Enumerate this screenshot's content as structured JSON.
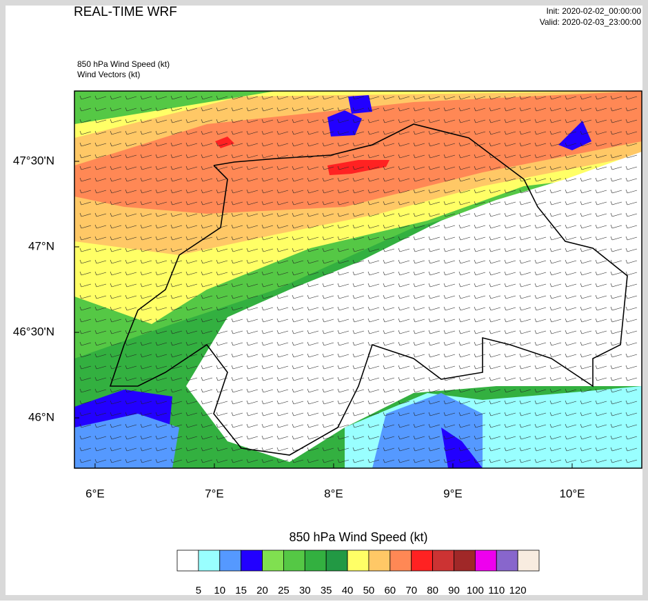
{
  "header": {
    "title": "REAL-TIME WRF",
    "init": "Init: 2020-02-02_00:00:00",
    "valid": "Valid: 2020-02-03_23:00:00"
  },
  "fields": [
    "850 hPa Wind Speed   (kt)",
    "Wind Vectors   (kt)"
  ],
  "map": {
    "lon_range": [
      5.827,
      10.584
    ],
    "lat_range": [
      45.706,
      47.911
    ],
    "lon_ticks": [
      {
        "value": 6,
        "label": "6°E"
      },
      {
        "value": 7,
        "label": "7°E"
      },
      {
        "value": 8,
        "label": "8°E"
      },
      {
        "value": 9,
        "label": "9°E"
      },
      {
        "value": 10,
        "label": "10°E"
      }
    ],
    "lat_ticks": [
      {
        "value": 46,
        "label": "46°N"
      },
      {
        "value": 46.5,
        "label": "46°30'N"
      },
      {
        "value": 47,
        "label": "47°N"
      },
      {
        "value": 47.5,
        "label": "47°30'N"
      }
    ]
  },
  "colorbar": {
    "title": "850 hPa Wind Speed  (kt)",
    "levels": [
      5,
      10,
      15,
      20,
      25,
      30,
      35,
      40,
      50,
      60,
      70,
      80,
      90,
      100,
      110,
      120
    ],
    "colors": [
      "#ffffff",
      "#99ffff",
      "#5599ff",
      "#2200ff",
      "#80e050",
      "#55c845",
      "#33b040",
      "#229944",
      "#ffff66",
      "#ffc866",
      "#ff8855",
      "#ff2222",
      "#cc3333",
      "#a02828",
      "#ee00ee",
      "#8866cc",
      "#f8ece0"
    ]
  }
}
